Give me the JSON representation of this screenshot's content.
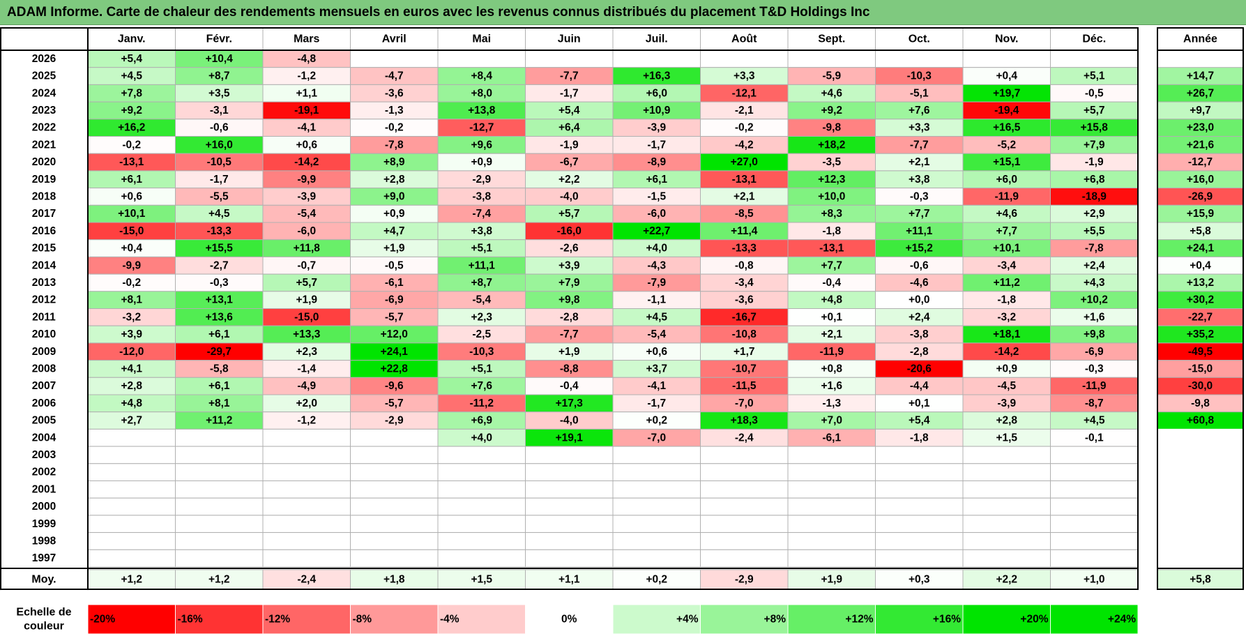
{
  "title": "ADAM Informe. Carte de chaleur des rendements mensuels en euros avec les revenus connus distribués du placement T&D Holdings Inc",
  "chart_data": {
    "type": "heatmap",
    "title": "ADAM Informe. Carte de chaleur des rendements mensuels en euros avec les revenus connus distribués du placement T&D Holdings Inc",
    "months": [
      "Janv.",
      "Févr.",
      "Mars",
      "Avril",
      "Mai",
      "Juin",
      "Juil.",
      "Août",
      "Sept.",
      "Oct.",
      "Nov.",
      "Déc."
    ],
    "annual_header": "Année",
    "rows": [
      {
        "year": "2026",
        "values": [
          "+5,4",
          "+10,4",
          "-4,8",
          "",
          "",
          "",
          "",
          "",
          "",
          "",
          "",
          ""
        ],
        "annual": ""
      },
      {
        "year": "2025",
        "values": [
          "+4,5",
          "+8,7",
          "-1,2",
          "-4,7",
          "+8,4",
          "-7,7",
          "+16,3",
          "+3,3",
          "-5,9",
          "-10,3",
          "+0,4",
          "+5,1"
        ],
        "annual": "+14,7"
      },
      {
        "year": "2024",
        "values": [
          "+7,8",
          "+3,5",
          "+1,1",
          "-3,6",
          "+8,0",
          "-1,7",
          "+6,0",
          "-12,1",
          "+4,6",
          "-5,1",
          "+19,7",
          "-0,5"
        ],
        "annual": "+26,7"
      },
      {
        "year": "2023",
        "values": [
          "+9,2",
          "-3,1",
          "-19,1",
          "-1,3",
          "+13,8",
          "+5,4",
          "+10,9",
          "-2,1",
          "+9,2",
          "+7,6",
          "-19,4",
          "+5,7"
        ],
        "annual": "+9,7"
      },
      {
        "year": "2022",
        "values": [
          "+16,2",
          "-0,6",
          "-4,1",
          "-0,2",
          "-12,7",
          "+6,4",
          "-3,9",
          "-0,2",
          "-9,8",
          "+3,3",
          "+16,5",
          "+15,8"
        ],
        "annual": "+23,0"
      },
      {
        "year": "2021",
        "values": [
          "-0,2",
          "+16,0",
          "+0,6",
          "-7,8",
          "+9,6",
          "-1,9",
          "-1,7",
          "-4,2",
          "+18,2",
          "-7,7",
          "-5,2",
          "+7,9"
        ],
        "annual": "+21,6"
      },
      {
        "year": "2020",
        "values": [
          "-13,1",
          "-10,5",
          "-14,2",
          "+8,9",
          "+0,9",
          "-6,7",
          "-8,9",
          "+27,0",
          "-3,5",
          "+2,1",
          "+15,1",
          "-1,9"
        ],
        "annual": "-12,7"
      },
      {
        "year": "2019",
        "values": [
          "+6,1",
          "-1,7",
          "-9,9",
          "+2,8",
          "-2,9",
          "+2,2",
          "+6,1",
          "-13,1",
          "+12,3",
          "+3,8",
          "+6,0",
          "+6,8"
        ],
        "annual": "+16,0"
      },
      {
        "year": "2018",
        "values": [
          "+0,6",
          "-5,5",
          "-3,9",
          "+9,0",
          "-3,8",
          "-4,0",
          "-1,5",
          "+2,1",
          "+10,0",
          "-0,3",
          "-11,9",
          "-18,9"
        ],
        "annual": "-26,9"
      },
      {
        "year": "2017",
        "values": [
          "+10,1",
          "+4,5",
          "-5,4",
          "+0,9",
          "-7,4",
          "+5,7",
          "-6,0",
          "-8,5",
          "+8,3",
          "+7,7",
          "+4,6",
          "+2,9"
        ],
        "annual": "+15,9"
      },
      {
        "year": "2016",
        "values": [
          "-15,0",
          "-13,3",
          "-6,0",
          "+4,7",
          "+3,8",
          "-16,0",
          "+22,7",
          "+11,4",
          "-1,8",
          "+11,1",
          "+7,7",
          "+5,5"
        ],
        "annual": "+5,8"
      },
      {
        "year": "2015",
        "values": [
          "+0,4",
          "+15,5",
          "+11,8",
          "+1,9",
          "+5,1",
          "-2,6",
          "+4,0",
          "-13,3",
          "-13,1",
          "+15,2",
          "+10,1",
          "-7,8"
        ],
        "annual": "+24,1"
      },
      {
        "year": "2014",
        "values": [
          "-9,9",
          "-2,7",
          "-0,7",
          "-0,5",
          "+11,1",
          "+3,9",
          "-4,3",
          "-0,8",
          "+7,7",
          "-0,6",
          "-3,4",
          "+2,4"
        ],
        "annual": "+0,4"
      },
      {
        "year": "2013",
        "values": [
          "-0,2",
          "-0,3",
          "+5,7",
          "-6,1",
          "+8,7",
          "+7,9",
          "-7,9",
          "-3,4",
          "-0,4",
          "-4,6",
          "+11,2",
          "+4,3"
        ],
        "annual": "+13,2"
      },
      {
        "year": "2012",
        "values": [
          "+8,1",
          "+13,1",
          "+1,9",
          "-6,9",
          "-5,4",
          "+9,8",
          "-1,1",
          "-3,6",
          "+4,8",
          "+0,0",
          "-1,8",
          "+10,2"
        ],
        "annual": "+30,2"
      },
      {
        "year": "2011",
        "values": [
          "-3,2",
          "+13,6",
          "-15,0",
          "-5,7",
          "+2,3",
          "-2,8",
          "+4,5",
          "-16,7",
          "+0,1",
          "+2,4",
          "-3,2",
          "+1,6"
        ],
        "annual": "-22,7"
      },
      {
        "year": "2010",
        "values": [
          "+3,9",
          "+6,1",
          "+13,3",
          "+12,0",
          "-2,5",
          "-7,7",
          "-5,4",
          "-10,8",
          "+2,1",
          "-3,8",
          "+18,1",
          "+9,8"
        ],
        "annual": "+35,2"
      },
      {
        "year": "2009",
        "values": [
          "-12,0",
          "-29,7",
          "+2,3",
          "+24,1",
          "-10,3",
          "+1,9",
          "+0,6",
          "+1,7",
          "-11,9",
          "-2,8",
          "-14,2",
          "-6,9"
        ],
        "annual": "-49,5"
      },
      {
        "year": "2008",
        "values": [
          "+4,1",
          "-5,8",
          "-1,4",
          "+22,8",
          "+5,1",
          "-8,8",
          "+3,7",
          "-10,7",
          "+0,8",
          "-20,6",
          "+0,9",
          "-0,3"
        ],
        "annual": "-15,0"
      },
      {
        "year": "2007",
        "values": [
          "+2,8",
          "+6,1",
          "-4,9",
          "-9,6",
          "+7,6",
          "-0,4",
          "-4,1",
          "-11,5",
          "+1,6",
          "-4,4",
          "-4,5",
          "-11,9"
        ],
        "annual": "-30,0"
      },
      {
        "year": "2006",
        "values": [
          "+4,8",
          "+8,1",
          "+2,0",
          "-5,7",
          "-11,2",
          "+17,3",
          "-1,7",
          "-7,0",
          "-1,3",
          "+0,1",
          "-3,9",
          "-8,7"
        ],
        "annual": "-9,8"
      },
      {
        "year": "2005",
        "values": [
          "+2,7",
          "+11,2",
          "-1,2",
          "-2,9",
          "+6,9",
          "-4,0",
          "+0,2",
          "+18,3",
          "+7,0",
          "+5,4",
          "+2,8",
          "+4,5"
        ],
        "annual": "+60,8"
      },
      {
        "year": "2004",
        "values": [
          "",
          "",
          "",
          "",
          "+4,0",
          "+19,1",
          "-7,0",
          "-2,4",
          "-6,1",
          "-1,8",
          "+1,5",
          "-0,1"
        ],
        "annual": ""
      },
      {
        "year": "2003",
        "values": [
          "",
          "",
          "",
          "",
          "",
          "",
          "",
          "",
          "",
          "",
          "",
          ""
        ],
        "annual": ""
      },
      {
        "year": "2002",
        "values": [
          "",
          "",
          "",
          "",
          "",
          "",
          "",
          "",
          "",
          "",
          "",
          ""
        ],
        "annual": ""
      },
      {
        "year": "2001",
        "values": [
          "",
          "",
          "",
          "",
          "",
          "",
          "",
          "",
          "",
          "",
          "",
          ""
        ],
        "annual": ""
      },
      {
        "year": "2000",
        "values": [
          "",
          "",
          "",
          "",
          "",
          "",
          "",
          "",
          "",
          "",
          "",
          ""
        ],
        "annual": ""
      },
      {
        "year": "1999",
        "values": [
          "",
          "",
          "",
          "",
          "",
          "",
          "",
          "",
          "",
          "",
          "",
          ""
        ],
        "annual": ""
      },
      {
        "year": "1998",
        "values": [
          "",
          "",
          "",
          "",
          "",
          "",
          "",
          "",
          "",
          "",
          "",
          ""
        ],
        "annual": ""
      },
      {
        "year": "1997",
        "values": [
          "",
          "",
          "",
          "",
          "",
          "",
          "",
          "",
          "",
          "",
          "",
          ""
        ],
        "annual": ""
      }
    ],
    "average": {
      "label": "Moy.",
      "values": [
        "+1,2",
        "+1,2",
        "-2,4",
        "+1,8",
        "+1,5",
        "+1,1",
        "+0,2",
        "-2,9",
        "+1,9",
        "+0,3",
        "+2,2",
        "+1,0"
      ],
      "annual": "+5,8"
    },
    "scale": {
      "label_line1": "Echelle de",
      "label_line2": "couleur",
      "labels": [
        "-20%",
        "-16%",
        "-12%",
        "-8%",
        "-4%",
        "0%",
        "+4%",
        "+8%",
        "+12%",
        "+16%",
        "+20%",
        "+24%"
      ],
      "levels": [
        -20,
        -16,
        -12,
        -8,
        -4,
        0,
        4,
        8,
        12,
        16,
        20,
        24
      ]
    },
    "colors": {
      "negative_max": "#ff0000",
      "positive_max": "#00e400",
      "neutral": "#ffffff",
      "title_bg": "#7fc97f",
      "grid": "#b0b0b0"
    }
  }
}
